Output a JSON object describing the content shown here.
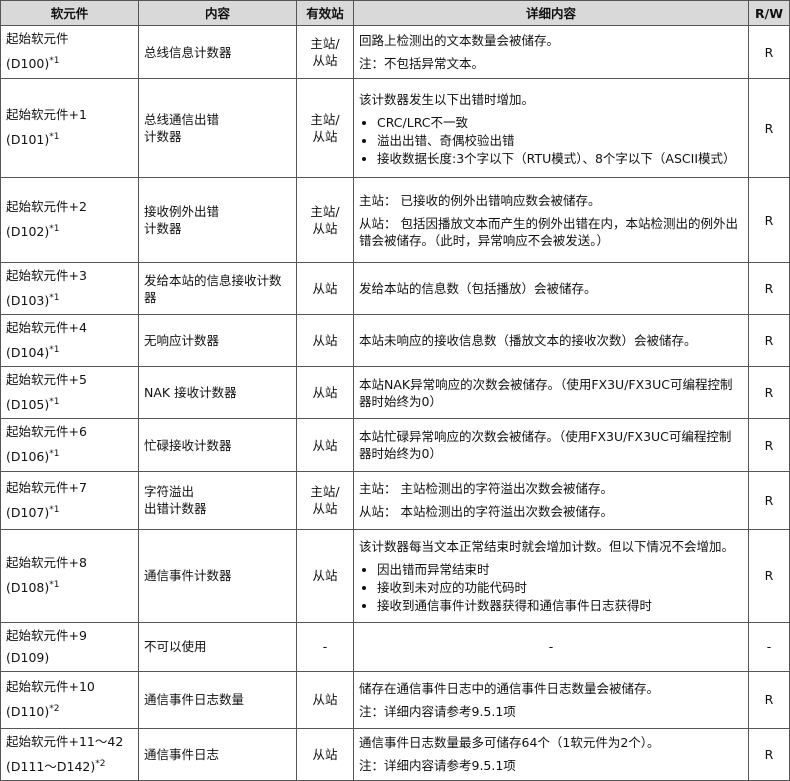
{
  "table": {
    "header": [
      "软元件",
      "内容",
      "有效站",
      "详细内容",
      "R/W"
    ],
    "rows": [
      {
        "device": "起始软元件",
        "address": "(D100)",
        "note": "*1",
        "content": [
          "总线信息计数器"
        ],
        "station": [
          "主站/",
          "从站"
        ],
        "paragraphs": [
          "回路上检测出的文本数量会被储存。",
          "注：不包括异常文本。"
        ],
        "bullets": [],
        "rw": "R"
      },
      {
        "device": "起始软元件+1",
        "address": "(D101)",
        "note": "*1",
        "content": [
          "总线通信出错",
          "计数器"
        ],
        "station": [
          "主站/",
          "从站"
        ],
        "paragraphs": [
          "该计数器发生以下出错时增加。"
        ],
        "bullets": [
          "CRC/LRC不一致",
          "溢出出错、奇偶校验出错",
          "接收数据长度:3个字以下（RTU模式）、8个字以下（ASCII模式）"
        ],
        "rw": "R"
      },
      {
        "device": "起始软元件+2",
        "address": "(D102)",
        "note": "*1",
        "content": [
          "接收例外出错",
          "计数器"
        ],
        "station": [
          "主站/",
          "从站"
        ],
        "paragraphs": [
          "主站： 已接收的例外出错响应数会被储存。",
          "从站： 包括因播放文本而产生的例外出错在内，本站检测出的例外出错会被储存。（此时，异常响应不会被发送。）"
        ],
        "bullets": [],
        "rw": "R"
      },
      {
        "device": "起始软元件+3",
        "address": "(D103)",
        "note": "*1",
        "content": [
          "发给本站的信息接收计数器"
        ],
        "station": [
          "从站"
        ],
        "paragraphs": [
          "发给本站的信息数（包括播放）会被储存。"
        ],
        "bullets": [],
        "rw": "R"
      },
      {
        "device": "起始软元件+4",
        "address": "(D104)",
        "note": "*1",
        "content": [
          "无响应计数器"
        ],
        "station": [
          "从站"
        ],
        "paragraphs": [
          "本站未响应的接收信息数（播放文本的接收次数）会被储存。"
        ],
        "bullets": [],
        "rw": "R"
      },
      {
        "device": "起始软元件+5",
        "address": "(D105)",
        "note": "*1",
        "content": [
          "NAK 接收计数器"
        ],
        "station": [
          "从站"
        ],
        "paragraphs": [
          "本站NAK异常响应的次数会被储存。（使用FX3U/FX3UC可编程控制器时始终为0）"
        ],
        "bullets": [],
        "rw": "R"
      },
      {
        "device": "起始软元件+6",
        "address": "(D106)",
        "note": "*1",
        "content": [
          "忙碌接收计数器"
        ],
        "station": [
          "从站"
        ],
        "paragraphs": [
          "本站忙碌异常响应的次数会被储存。（使用FX3U/FX3UC可编程控制器时始终为0）"
        ],
        "bullets": [],
        "rw": "R"
      },
      {
        "device": "起始软元件+7",
        "address": "(D107)",
        "note": "*1",
        "content": [
          "字符溢出",
          "出错计数器"
        ],
        "station": [
          "主站/",
          "从站"
        ],
        "paragraphs": [
          "主站： 主站检测出的字符溢出次数会被储存。",
          "从站： 本站检测出的字符溢出次数会被储存。"
        ],
        "bullets": [],
        "rw": "R"
      },
      {
        "device": "起始软元件+8",
        "address": "(D108)",
        "note": "*1",
        "content": [
          "通信事件计数器"
        ],
        "station": [
          "从站"
        ],
        "paragraphs": [
          "该计数器每当文本正常结束时就会增加计数。但以下情况不会增加。"
        ],
        "bullets": [
          "因出错而异常结束时",
          "接收到未对应的功能代码时",
          "接收到通信事件计数器获得和通信事件日志获得时"
        ],
        "rw": "R"
      },
      {
        "device": "起始软元件+9",
        "address": "(D109)",
        "content": [
          "不可以使用"
        ],
        "station": [
          "-"
        ],
        "paragraphs": [
          "-"
        ],
        "bullets": [],
        "rw": "-"
      },
      {
        "device": "起始软元件+10",
        "address": "(D110)",
        "note": "*2",
        "content": [
          "通信事件日志数量"
        ],
        "station": [
          "从站"
        ],
        "paragraphs": [
          "储存在通信事件日志中的通信事件日志数量会被储存。",
          "注：详细内容请参考9.5.1项"
        ],
        "bullets": [],
        "rw": "R"
      },
      {
        "device": "起始软元件+11～42",
        "address": "(D111～D142)",
        "note": "*2",
        "content": [
          "通信事件日志"
        ],
        "station": [
          "从站"
        ],
        "paragraphs": [
          "通信事件日志数量最多可储存64个（1软元件为2个）。",
          "注：详细内容请参考9.5.1项"
        ],
        "bullets": [],
        "rw": "R"
      }
    ]
  }
}
